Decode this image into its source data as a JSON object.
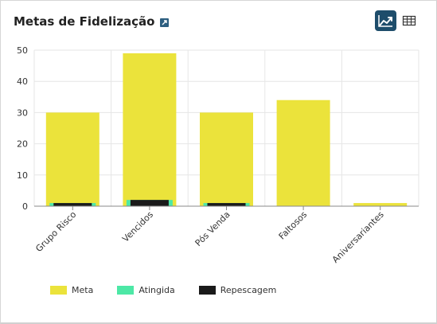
{
  "header": {
    "title": "Metas de Fidelização",
    "external_link_icon": "external-link-icon",
    "line_chart_button_icon": "line-chart-icon",
    "table_button_icon": "table-icon"
  },
  "colors": {
    "meta": "#ebe33b",
    "atingida": "#4de8a6",
    "repescagem": "#1a1a1a",
    "active_button": "#1e4d6b"
  },
  "legend": [
    {
      "label": "Meta",
      "color": "#ebe33b"
    },
    {
      "label": "Atingida",
      "color": "#4de8a6"
    },
    {
      "label": "Repescagem",
      "color": "#1a1a1a"
    }
  ],
  "chart_data": {
    "type": "bar",
    "categories": [
      "Grupo Risco",
      "Vencidos",
      "Pós Venda",
      "Faltosos",
      "Aniversariantes"
    ],
    "series": [
      {
        "name": "Meta",
        "values": [
          30,
          49,
          30,
          34,
          1
        ]
      },
      {
        "name": "Atingida",
        "values": [
          1,
          2,
          1,
          0,
          0
        ]
      },
      {
        "name": "Repescagem",
        "values": [
          1,
          2,
          1,
          0,
          0
        ]
      }
    ],
    "yticks": [
      "0",
      "10",
      "20",
      "30",
      "40",
      "50"
    ],
    "ylim": [
      0,
      50
    ],
    "grid": true,
    "legend_position": "bottom"
  }
}
